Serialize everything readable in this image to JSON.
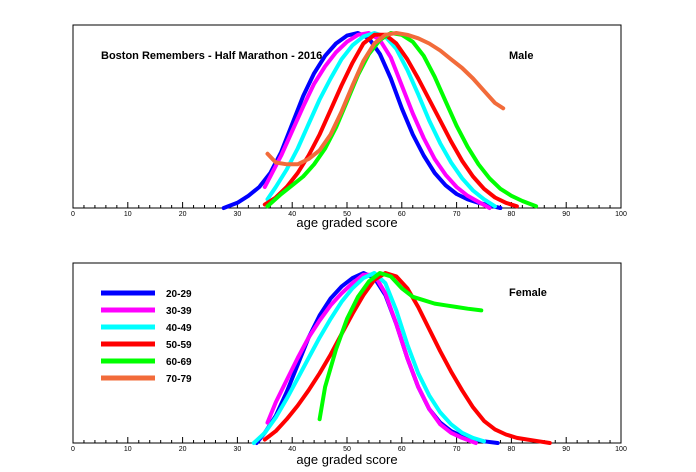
{
  "chart_data": [
    {
      "type": "line",
      "title": "Boston Remembers - Half Marathon - 2016",
      "panel_label": "Male",
      "xlabel": "age graded score",
      "ylabel": "",
      "xlim": [
        0,
        100
      ],
      "ylim": [
        0,
        1
      ],
      "x_ticks": [
        0,
        10,
        20,
        30,
        40,
        50,
        60,
        70,
        80,
        90,
        100
      ],
      "grid": false,
      "legend": "none",
      "series": [
        {
          "name": "20-29",
          "color": "#0000ff",
          "x": [
            27.5,
            30,
            32,
            34,
            36,
            38,
            40,
            42,
            44,
            46,
            48,
            50,
            52,
            54,
            56,
            58,
            60,
            62,
            64,
            66,
            68,
            70,
            72,
            74,
            76,
            78
          ],
          "y": [
            0,
            0.03,
            0.07,
            0.12,
            0.2,
            0.32,
            0.48,
            0.64,
            0.77,
            0.87,
            0.94,
            0.985,
            1.0,
            0.97,
            0.88,
            0.74,
            0.57,
            0.42,
            0.3,
            0.2,
            0.13,
            0.08,
            0.05,
            0.03,
            0.015,
            0
          ]
        },
        {
          "name": "30-39",
          "color": "#ff00ff",
          "x": [
            35,
            36,
            38,
            40,
            42,
            44,
            46,
            48,
            50,
            52,
            54,
            56,
            58,
            60,
            62,
            64,
            66,
            68,
            70,
            72,
            74,
            76
          ],
          "y": [
            0.12,
            0.18,
            0.3,
            0.44,
            0.58,
            0.71,
            0.81,
            0.89,
            0.95,
            0.99,
            1.0,
            0.96,
            0.86,
            0.7,
            0.54,
            0.4,
            0.28,
            0.19,
            0.12,
            0.07,
            0.035,
            0
          ]
        },
        {
          "name": "40-49",
          "color": "#00ffff",
          "x": [
            35.5,
            37,
            39,
            41,
            43,
            45,
            47,
            49,
            51,
            53,
            55,
            57,
            59,
            61,
            63,
            65,
            67,
            69,
            71,
            73,
            75,
            77
          ],
          "y": [
            0.05,
            0.12,
            0.22,
            0.34,
            0.48,
            0.62,
            0.74,
            0.85,
            0.93,
            0.98,
            1.0,
            0.98,
            0.91,
            0.79,
            0.65,
            0.5,
            0.37,
            0.26,
            0.17,
            0.1,
            0.05,
            0.01
          ]
        },
        {
          "name": "50-59",
          "color": "#ff0000",
          "x": [
            35,
            37,
            39,
            41,
            43,
            45,
            47,
            49,
            51,
            53,
            55,
            57,
            59,
            61,
            63,
            65,
            67,
            69,
            71,
            73,
            75,
            77,
            79,
            81
          ],
          "y": [
            0.02,
            0.06,
            0.12,
            0.2,
            0.3,
            0.42,
            0.56,
            0.7,
            0.83,
            0.94,
            0.99,
            0.99,
            0.94,
            0.85,
            0.74,
            0.62,
            0.5,
            0.38,
            0.27,
            0.18,
            0.11,
            0.06,
            0.03,
            0.01
          ]
        },
        {
          "name": "60-69",
          "color": "#00ff00",
          "x": [
            35.5,
            38,
            40,
            42,
            44,
            46,
            48,
            50,
            52,
            54,
            56,
            58,
            60,
            62,
            64,
            66,
            68,
            70,
            72,
            74,
            76,
            78,
            80,
            82,
            84.5
          ],
          "y": [
            0.01,
            0.08,
            0.13,
            0.18,
            0.25,
            0.34,
            0.46,
            0.61,
            0.76,
            0.88,
            0.96,
            1.0,
            0.99,
            0.95,
            0.87,
            0.75,
            0.61,
            0.47,
            0.35,
            0.25,
            0.17,
            0.11,
            0.07,
            0.04,
            0.01
          ]
        },
        {
          "name": "70-79",
          "color": "#f26b3a",
          "x": [
            35.5,
            37,
            39,
            41,
            43,
            45,
            47,
            49,
            51,
            53,
            55,
            57,
            59,
            61,
            63,
            65,
            67,
            69,
            71,
            73,
            75,
            77,
            78.5
          ],
          "y": [
            0.31,
            0.26,
            0.25,
            0.25,
            0.28,
            0.33,
            0.42,
            0.55,
            0.7,
            0.84,
            0.94,
            0.99,
            1.0,
            0.99,
            0.97,
            0.94,
            0.9,
            0.85,
            0.8,
            0.74,
            0.67,
            0.6,
            0.57
          ]
        }
      ]
    },
    {
      "type": "line",
      "title": "",
      "panel_label": "Female",
      "xlabel": "age graded score",
      "ylabel": "",
      "xlim": [
        0,
        100
      ],
      "ylim": [
        0,
        1
      ],
      "x_ticks": [
        0,
        10,
        20,
        30,
        40,
        50,
        60,
        70,
        80,
        90,
        100
      ],
      "grid": false,
      "legend": "top-left",
      "series": [
        {
          "name": "20-29",
          "color": "#0000ff",
          "x": [
            33.5,
            35,
            37,
            39,
            41,
            43,
            45,
            47,
            49,
            51,
            53,
            55,
            57,
            59,
            61,
            63,
            65,
            67,
            69,
            71,
            73,
            75,
            77.5
          ],
          "y": [
            0,
            0.06,
            0.16,
            0.3,
            0.46,
            0.62,
            0.75,
            0.85,
            0.92,
            0.97,
            1.0,
            0.97,
            0.87,
            0.7,
            0.5,
            0.33,
            0.2,
            0.12,
            0.07,
            0.04,
            0.02,
            0.01,
            0
          ]
        },
        {
          "name": "30-39",
          "color": "#ff00ff",
          "x": [
            35.5,
            37,
            39,
            41,
            43,
            45,
            47,
            49,
            51,
            53,
            55,
            57,
            59,
            61,
            63,
            65,
            67,
            69,
            71,
            73.5
          ],
          "y": [
            0.12,
            0.24,
            0.37,
            0.5,
            0.62,
            0.72,
            0.81,
            0.88,
            0.94,
            0.99,
            0.99,
            0.88,
            0.7,
            0.5,
            0.33,
            0.2,
            0.11,
            0.06,
            0.03,
            0
          ]
        },
        {
          "name": "40-49",
          "color": "#00ffff",
          "x": [
            33,
            35,
            37,
            39,
            41,
            43,
            45,
            47,
            49,
            51,
            53,
            55,
            57,
            59,
            61,
            63,
            65,
            67,
            69,
            71,
            73,
            75
          ],
          "y": [
            0,
            0.06,
            0.15,
            0.26,
            0.38,
            0.5,
            0.62,
            0.73,
            0.83,
            0.91,
            0.97,
            1.0,
            0.94,
            0.78,
            0.58,
            0.41,
            0.28,
            0.18,
            0.11,
            0.06,
            0.03,
            0.01
          ]
        },
        {
          "name": "50-59",
          "color": "#ff0000",
          "x": [
            35,
            37,
            39,
            41,
            43,
            45,
            47,
            49,
            51,
            53,
            55,
            57,
            59,
            61,
            63,
            65,
            67,
            69,
            71,
            73,
            75,
            77,
            79,
            81,
            83,
            85,
            87
          ],
          "y": [
            0.02,
            0.07,
            0.14,
            0.22,
            0.31,
            0.41,
            0.52,
            0.64,
            0.76,
            0.87,
            0.96,
            1.0,
            0.98,
            0.91,
            0.8,
            0.67,
            0.54,
            0.42,
            0.31,
            0.21,
            0.13,
            0.08,
            0.05,
            0.03,
            0.02,
            0.01,
            0
          ]
        },
        {
          "name": "60-69",
          "color": "#00ff00",
          "x": [
            45,
            46,
            48,
            50,
            52,
            54,
            56,
            58,
            60,
            62,
            64,
            66,
            68,
            70,
            72,
            74.5
          ],
          "y": [
            0.14,
            0.33,
            0.55,
            0.73,
            0.86,
            0.95,
            1.0,
            0.98,
            0.91,
            0.86,
            0.84,
            0.82,
            0.81,
            0.8,
            0.79,
            0.78
          ]
        }
      ]
    }
  ]
}
